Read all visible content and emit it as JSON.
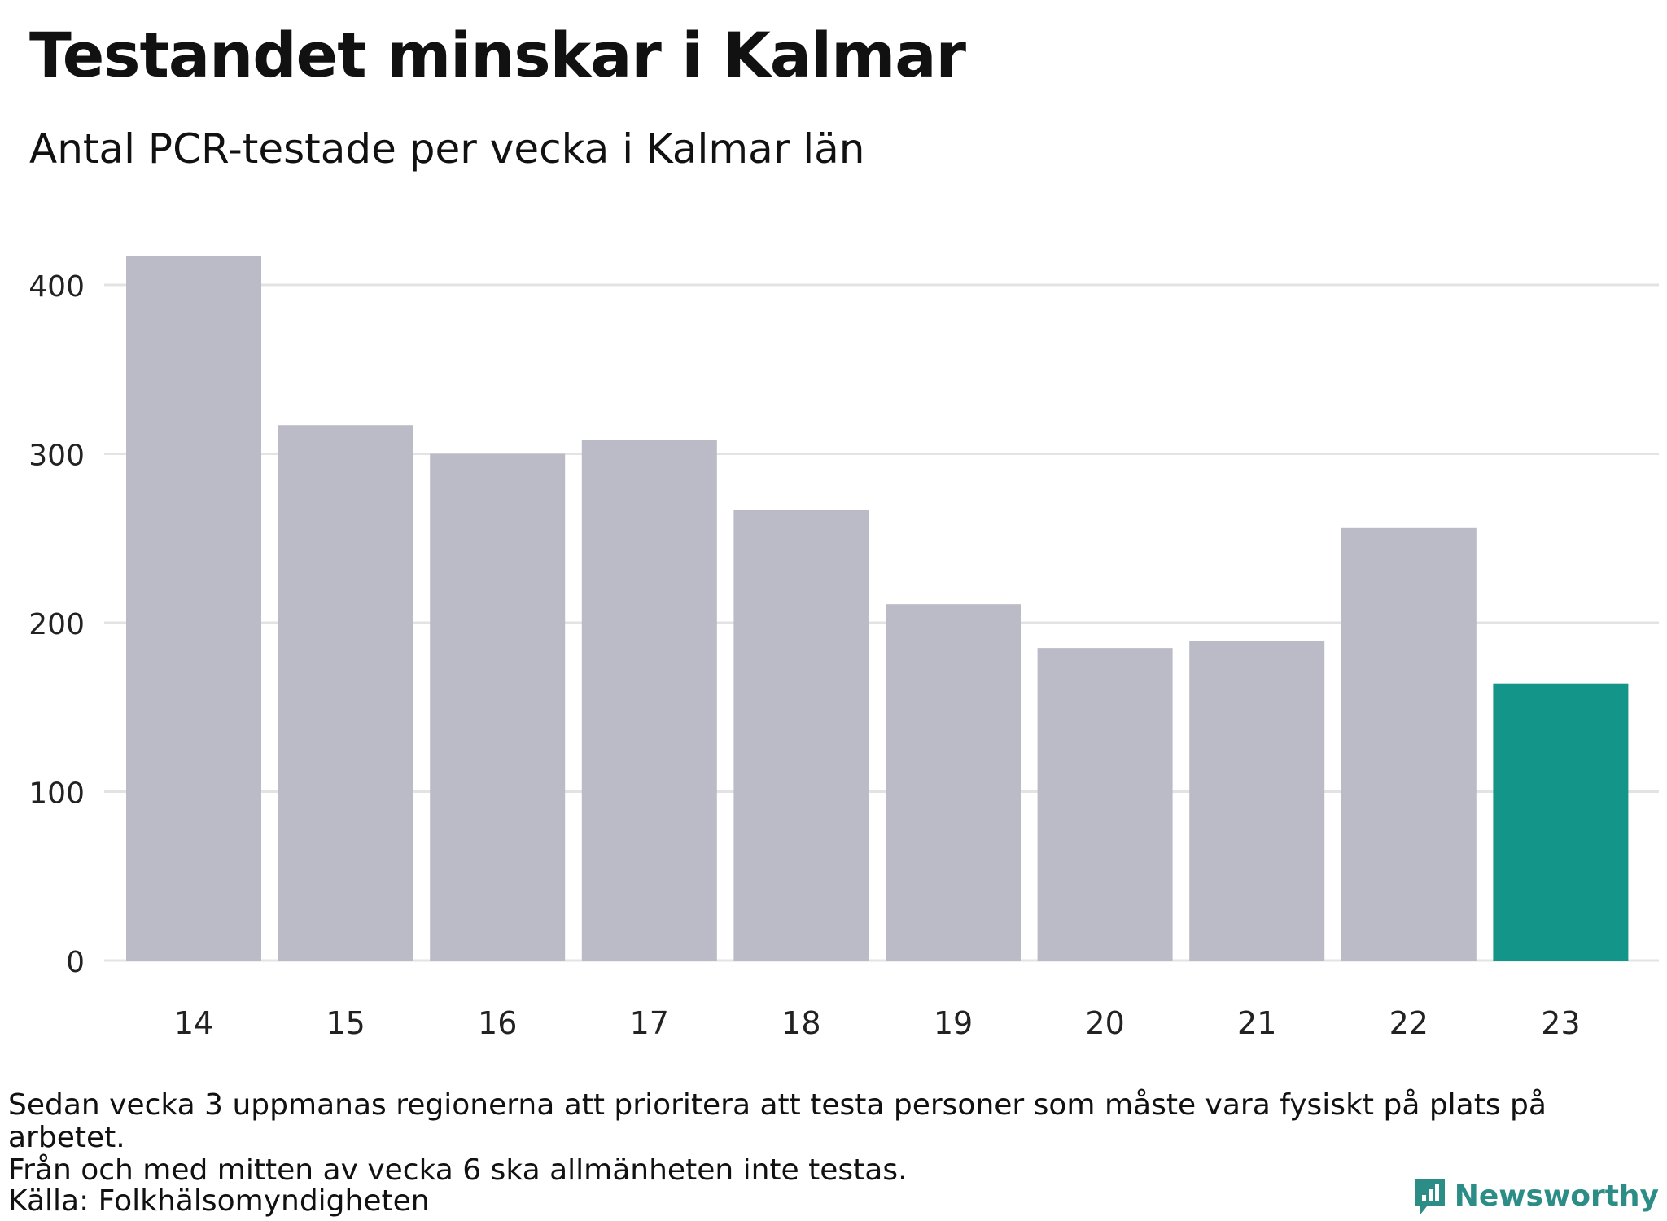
{
  "header": {
    "title": "Testandet minskar i Kalmar",
    "subtitle": "Antal PCR-testade per vecka i Kalmar län"
  },
  "footer": {
    "note_line1": "Sedan vecka 3 uppmanas regionerna att prioritera att testa personer som måste vara fysiskt på plats på arbetet.",
    "note_line2": "Från och med mitten av vecka 6 ska allmänheten inte testas.",
    "source": "Källa: Folkhälsomyndigheten",
    "brand": "Newsworthy",
    "brand_color": "#2c8c86"
  },
  "chart_data": {
    "type": "bar",
    "title": "Testandet minskar i Kalmar",
    "subtitle": "Antal PCR-testade per vecka i Kalmar län",
    "categories": [
      "14",
      "15",
      "16",
      "17",
      "18",
      "19",
      "20",
      "21",
      "22",
      "23"
    ],
    "values": [
      417,
      317,
      300,
      308,
      267,
      211,
      185,
      189,
      256,
      164
    ],
    "highlight_index": 9,
    "ylim": [
      0,
      420
    ],
    "yticks": [
      0,
      100,
      200,
      300,
      400
    ],
    "xlabel": "",
    "ylabel": "",
    "grid": true,
    "colors": {
      "bar": "#bbbac7",
      "highlight": "#14958a",
      "grid": "#e3e3e3"
    }
  }
}
